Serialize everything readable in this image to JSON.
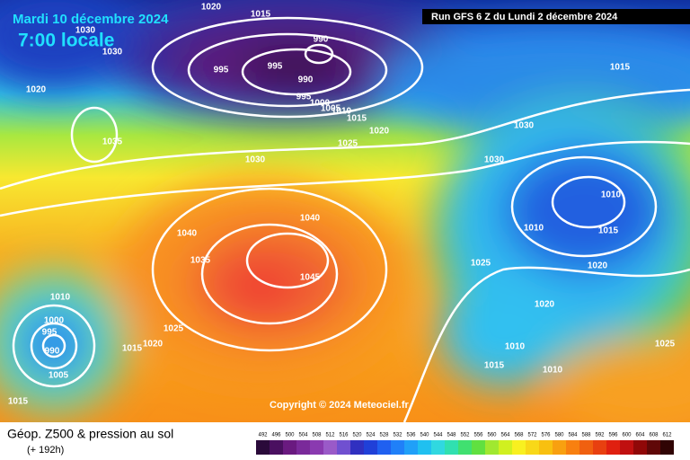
{
  "header": {
    "date": "Mardi 10 décembre 2024",
    "time": "7:00 locale",
    "run": "Run GFS 6 Z du Lundi 2 décembre 2024"
  },
  "map": {
    "isobar_labels": [
      1020,
      1015,
      1030,
      1030,
      990,
      995,
      995,
      990,
      995,
      1000,
      1005,
      1010,
      1015,
      1020,
      1025,
      1030,
      1020,
      1035,
      1030,
      1030,
      1015,
      1010,
      1010,
      1015,
      1040,
      1040,
      1035,
      1045,
      1025,
      1020,
      1020,
      1010,
      1000,
      995,
      990,
      1005,
      1025,
      1020,
      1015,
      1015,
      1010,
      1015,
      1010,
      1025
    ]
  },
  "footer": {
    "title": "Géop. Z500 & pression au sol",
    "lead": "(+ 192h)",
    "copyright": "Copyright © 2024 Meteociel.fr"
  },
  "legend": {
    "values": [
      492,
      496,
      500,
      504,
      508,
      512,
      516,
      520,
      524,
      528,
      532,
      536,
      540,
      544,
      548,
      552,
      556,
      560,
      564,
      568,
      572,
      576,
      580,
      584,
      588,
      592,
      596,
      600,
      604,
      608,
      612
    ],
    "colors": [
      "#2a0a3a",
      "#4a1060",
      "#6a1a80",
      "#7a2a9a",
      "#8a3ab0",
      "#9a5ac8",
      "#7050d0",
      "#3030c0",
      "#2040d8",
      "#2060f0",
      "#2080f8",
      "#20a0f8",
      "#20c0f0",
      "#30d8e0",
      "#30e0b0",
      "#40e070",
      "#60e040",
      "#a0e830",
      "#d0f020",
      "#f8f020",
      "#f8d818",
      "#f8c010",
      "#f8a010",
      "#f88010",
      "#f06010",
      "#e84010",
      "#e02010",
      "#c01010",
      "#900808",
      "#600808",
      "#300404"
    ]
  }
}
